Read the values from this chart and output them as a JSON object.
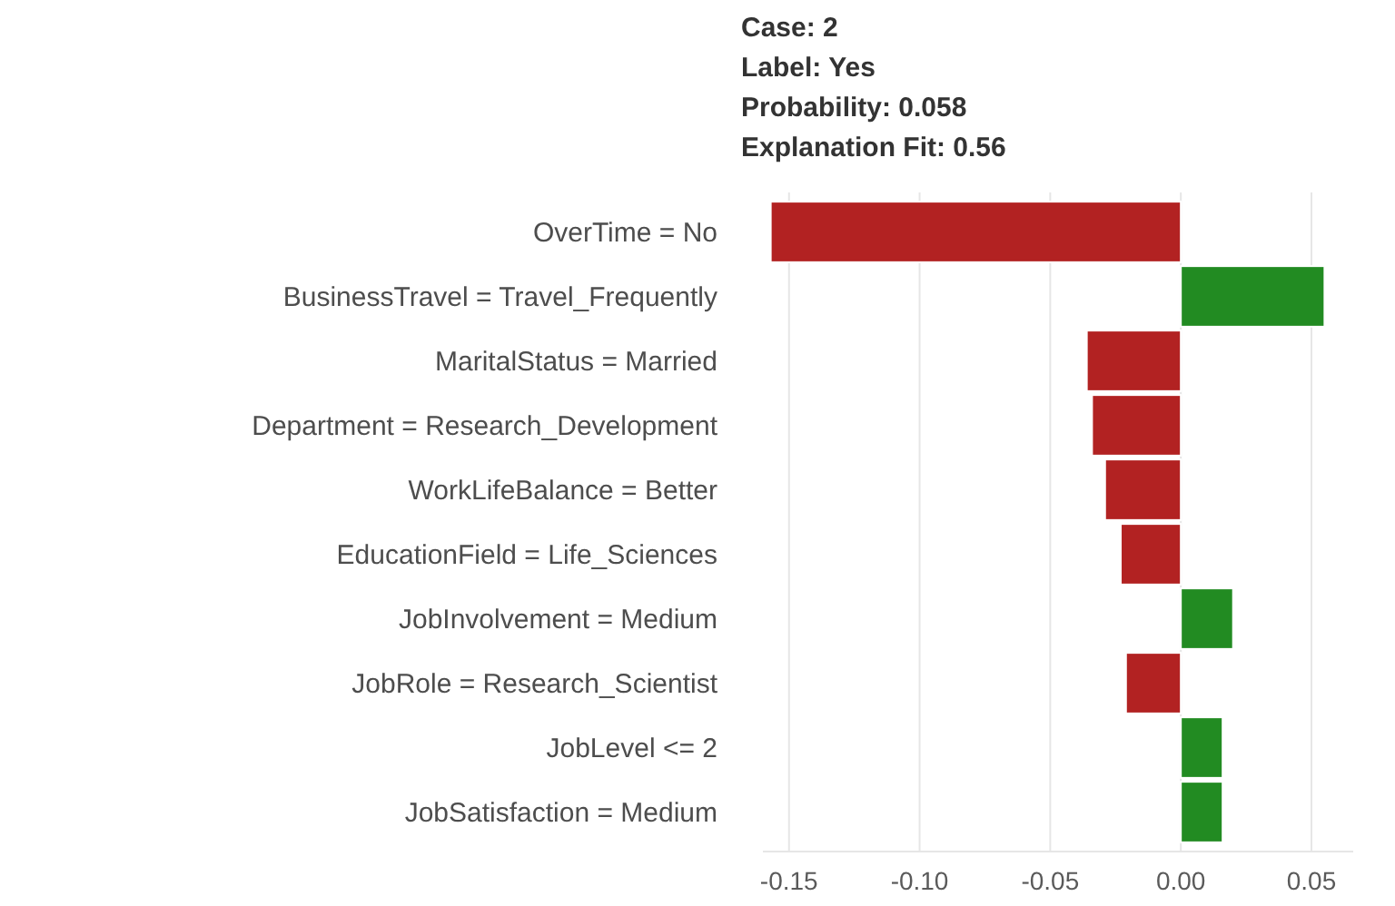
{
  "chart_data": {
    "type": "bar",
    "orientation": "horizontal",
    "title": "Case: 2\nLabel: Yes\nProbability: 0.058\nExplanation Fit: 0.56",
    "categories": [
      "OverTime = No",
      "BusinessTravel = Travel_Frequently",
      "MaritalStatus = Married",
      "Department = Research_Development",
      "WorkLifeBalance = Better",
      "EducationField = Life_Sciences",
      "JobInvolvement = Medium",
      "JobRole = Research_Scientist",
      "JobLevel <= 2",
      "JobSatisfaction = Medium"
    ],
    "values": [
      -0.157,
      0.055,
      -0.036,
      -0.034,
      -0.029,
      -0.023,
      0.02,
      -0.021,
      0.016,
      0.016
    ],
    "colors": [
      "#b22222",
      "#228b22",
      "#b22222",
      "#b22222",
      "#b22222",
      "#b22222",
      "#228b22",
      "#b22222",
      "#228b22",
      "#228b22"
    ],
    "xticks": [
      {
        "value": -0.15,
        "label": "-0.15"
      },
      {
        "value": -0.1,
        "label": "-0.10"
      },
      {
        "value": -0.05,
        "label": "-0.05"
      },
      {
        "value": 0,
        "label": "0.00"
      },
      {
        "value": 0.05,
        "label": "0.05"
      }
    ],
    "xlim": [
      -0.16,
      0.066
    ],
    "grid": "x"
  }
}
